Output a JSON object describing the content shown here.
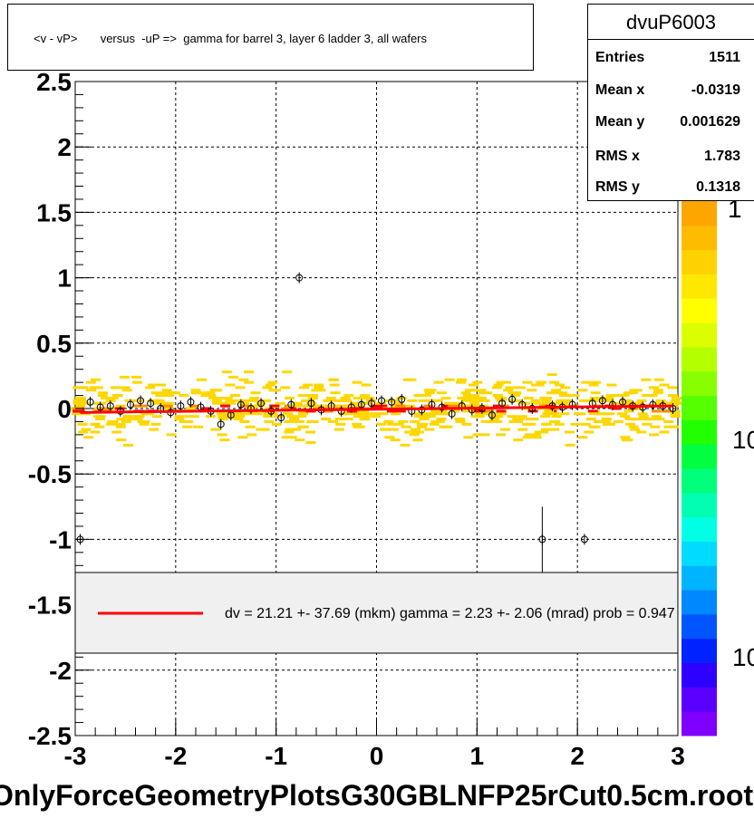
{
  "title": "<v - vP>       versus  -uP =>  gamma for barrel 3, layer 6 ladder 3, all wafers",
  "stats": {
    "name": "dvuP6003",
    "rows": [
      {
        "label": "Entries",
        "value": "1511"
      },
      {
        "label": "Mean x",
        "value": "-0.0319"
      },
      {
        "label": "Mean y",
        "value": "0.001629"
      },
      {
        "label": "RMS x",
        "value": "1.783"
      },
      {
        "label": "RMS y",
        "value": "0.1318"
      }
    ]
  },
  "legend_text": "dv =   21.21 +- 37.69 (mkm) gamma =    2.23 +-  2.06 (mrad) prob = 0.947",
  "bottom_label": "OnlyForceGeometryPlotsG30GBLNFP25rCut0.5cm.root",
  "palette_labels": [
    "1",
    "10",
    "10"
  ],
  "colors": {
    "fit": "#ff0000",
    "hist_low": "#ffd700",
    "hist_mid": "#ff8c00",
    "hist_high": "#ff0000",
    "legend_bg": "#f0f0f0"
  },
  "chart_data": {
    "type": "scatter",
    "xlim": [
      -3,
      3
    ],
    "ylim": [
      -2.5,
      2.5
    ],
    "x_ticks": [
      "-3",
      "-2",
      "-1",
      "0",
      "1",
      "2",
      "3"
    ],
    "y_ticks": [
      "-2.5",
      "-2",
      "-1.5",
      "-1",
      "-0.5",
      "0",
      "0.5",
      "1",
      "1.5",
      "2",
      "2.5"
    ],
    "grid": true,
    "fit_line": {
      "x": [
        -2.95,
        2.95
      ],
      "y": [
        -0.03,
        0.02
      ]
    },
    "profile_points": [
      {
        "x": -2.95,
        "y": -1.0
      },
      {
        "x": -2.85,
        "y": 0.05
      },
      {
        "x": -2.75,
        "y": 0.01
      },
      {
        "x": -2.65,
        "y": 0.02
      },
      {
        "x": -2.55,
        "y": -0.02
      },
      {
        "x": -2.45,
        "y": 0.03
      },
      {
        "x": -2.35,
        "y": 0.06
      },
      {
        "x": -2.25,
        "y": 0.04
      },
      {
        "x": -2.15,
        "y": 0.0
      },
      {
        "x": -2.05,
        "y": -0.03
      },
      {
        "x": -1.95,
        "y": 0.02
      },
      {
        "x": -1.85,
        "y": 0.05
      },
      {
        "x": -1.75,
        "y": 0.01
      },
      {
        "x": -1.65,
        "y": -0.02
      },
      {
        "x": -1.55,
        "y": -0.12
      },
      {
        "x": -1.45,
        "y": -0.05
      },
      {
        "x": -1.35,
        "y": 0.03
      },
      {
        "x": -1.25,
        "y": 0.0
      },
      {
        "x": -1.15,
        "y": 0.04
      },
      {
        "x": -1.05,
        "y": -0.02
      },
      {
        "x": -0.95,
        "y": -0.07
      },
      {
        "x": -0.85,
        "y": 0.03
      },
      {
        "x": -0.77,
        "y": 1.0
      },
      {
        "x": -0.65,
        "y": 0.04
      },
      {
        "x": -0.55,
        "y": -0.01
      },
      {
        "x": -0.45,
        "y": 0.02
      },
      {
        "x": -0.35,
        "y": -0.02
      },
      {
        "x": -0.25,
        "y": 0.01
      },
      {
        "x": -0.15,
        "y": 0.03
      },
      {
        "x": -0.05,
        "y": 0.04
      },
      {
        "x": 0.05,
        "y": 0.06
      },
      {
        "x": 0.15,
        "y": 0.05
      },
      {
        "x": 0.25,
        "y": 0.07
      },
      {
        "x": 0.35,
        "y": -0.02
      },
      {
        "x": 0.45,
        "y": -0.01
      },
      {
        "x": 0.55,
        "y": 0.03
      },
      {
        "x": 0.65,
        "y": 0.01
      },
      {
        "x": 0.75,
        "y": -0.04
      },
      {
        "x": 0.85,
        "y": 0.02
      },
      {
        "x": 0.95,
        "y": -0.01
      },
      {
        "x": 1.05,
        "y": 0.0
      },
      {
        "x": 1.15,
        "y": -0.05
      },
      {
        "x": 1.25,
        "y": 0.04
      },
      {
        "x": 1.35,
        "y": 0.07
      },
      {
        "x": 1.45,
        "y": 0.03
      },
      {
        "x": 1.55,
        "y": 0.0
      },
      {
        "x": 1.65,
        "y": -1.0
      },
      {
        "x": 1.75,
        "y": 0.02
      },
      {
        "x": 1.85,
        "y": 0.01
      },
      {
        "x": 1.95,
        "y": 0.03
      },
      {
        "x": 2.07,
        "y": -1.0
      },
      {
        "x": 2.15,
        "y": 0.04
      },
      {
        "x": 2.25,
        "y": 0.06
      },
      {
        "x": 2.35,
        "y": 0.03
      },
      {
        "x": 2.45,
        "y": 0.05
      },
      {
        "x": 2.55,
        "y": 0.02
      },
      {
        "x": 2.65,
        "y": 0.01
      },
      {
        "x": 2.75,
        "y": 0.03
      },
      {
        "x": 2.85,
        "y": 0.02
      },
      {
        "x": 2.95,
        "y": 0.0
      }
    ]
  }
}
